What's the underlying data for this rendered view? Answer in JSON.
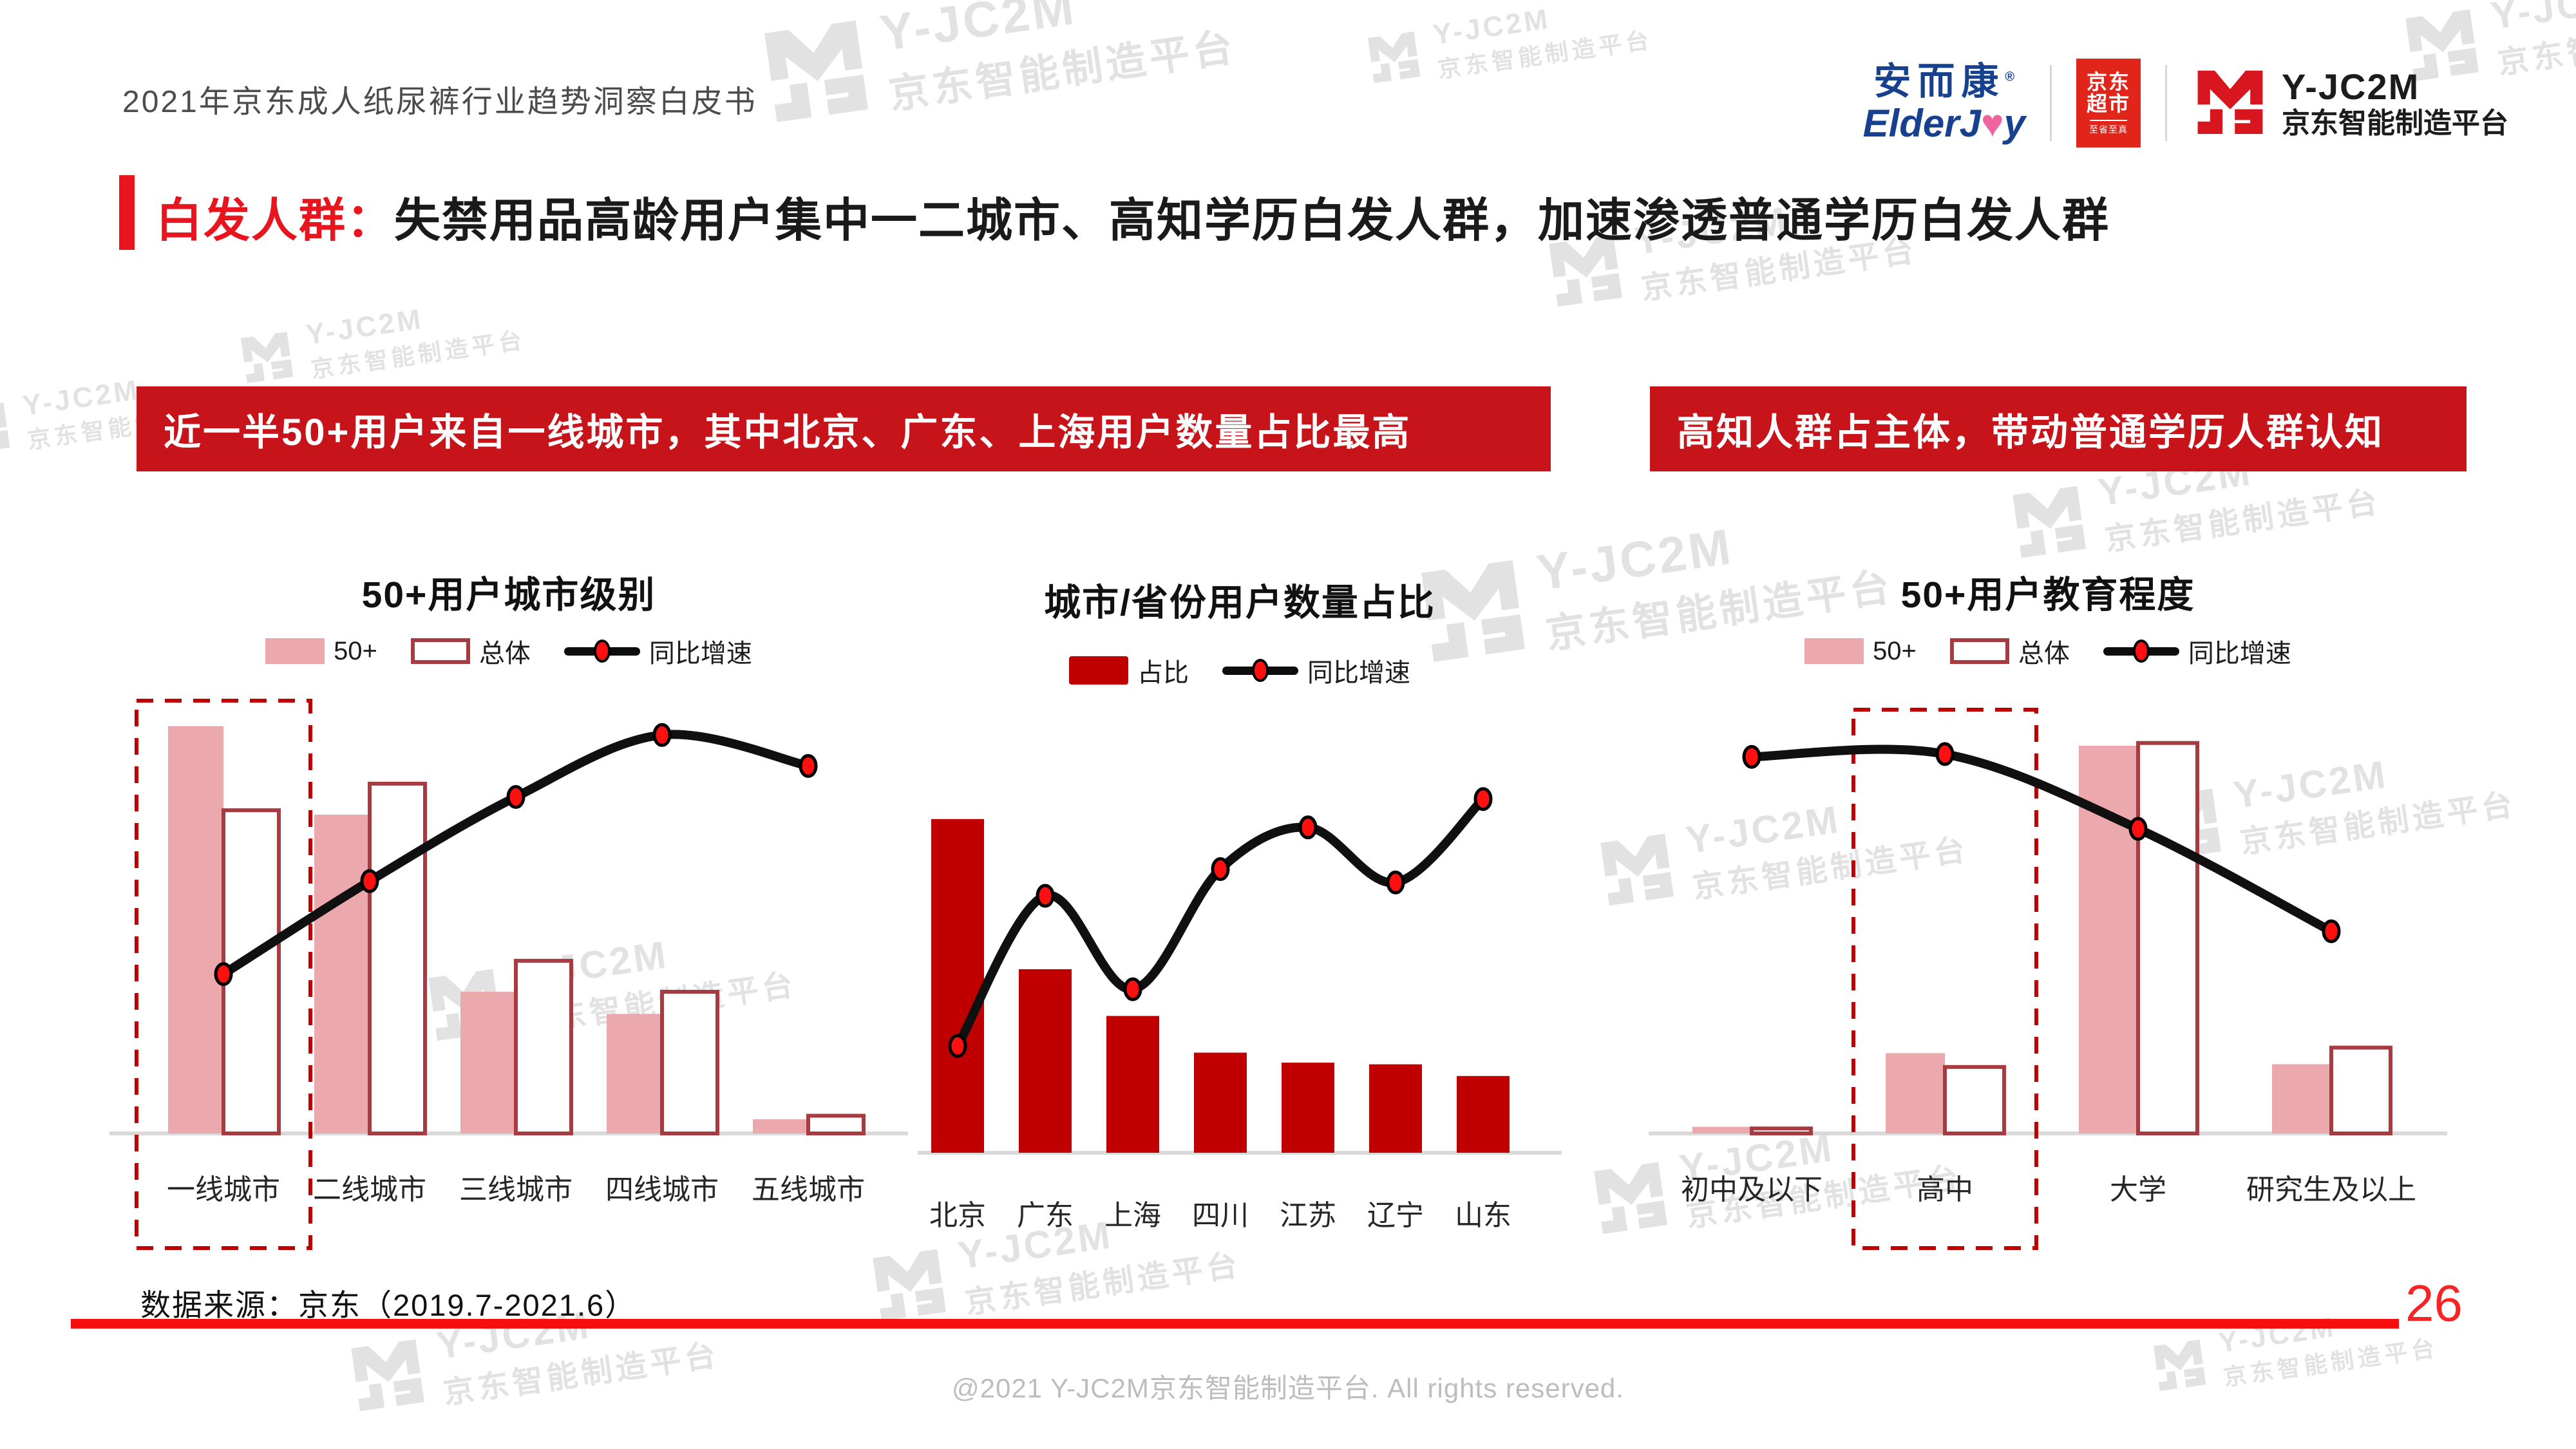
{
  "header": {
    "doc_title": "2021年京东成人纸尿裤行业趋势洞察白皮书",
    "logos": {
      "elderjoy": {
        "cn": "安而康",
        "reg": "®",
        "en_pre": "ElderJ",
        "en_heart": "♥",
        "en_post": "y"
      },
      "jd_supermarket": {
        "line1": "京东",
        "line2": "超市",
        "slogan": "至省至真"
      },
      "yjc2m": {
        "name": "Y-JC2M",
        "subtitle": "京东智能制造平台"
      }
    }
  },
  "title": {
    "highlight": "白发人群：",
    "rest": "失禁用品高龄用户集中一二城市、高知学历白发人群，加速渗透普通学历白发人群"
  },
  "banners": {
    "left": "近一半50+用户来自一线城市，其中北京、广东、上海用户数量占比最高",
    "right": "高知人群占主体，带动普通学历人群认知"
  },
  "watermark": {
    "line1": "Y-JC2M",
    "line2": "京东智能制造平台"
  },
  "palette": {
    "pink": "#EBA8AD",
    "outline": "#A63C42",
    "solid": "#C00000",
    "marker": "#FF1010",
    "line": "#101010",
    "banner": "#C7141B",
    "accent": "#E8141E",
    "jd_red": "#E1251B",
    "watermark": "#E2E2E2"
  },
  "chart_data": [
    {
      "id": "city-tier",
      "type": "bar+line",
      "title": "50+用户城市级别",
      "legend": [
        "50+",
        "总体",
        "同比增速"
      ],
      "categories": [
        "一线城市",
        "二线城市",
        "三线城市",
        "四线城市",
        "五线城市"
      ],
      "ymax": 48,
      "grid": false,
      "highlight_index": 0,
      "series": [
        {
          "name": "50+",
          "type": "bar",
          "style": "pink",
          "values": [
            46,
            36,
            16,
            13.5,
            1.6
          ]
        },
        {
          "name": "总体",
          "type": "bar",
          "style": "outline",
          "values": [
            36.5,
            39.5,
            19.5,
            16,
            2
          ]
        },
        {
          "name": "同比增速",
          "type": "line",
          "values": [
            18,
            28.5,
            38,
            45,
            41.5
          ]
        }
      ],
      "note": "values are percentages estimated from bar heights; growth line on hidden secondary axis"
    },
    {
      "id": "province",
      "type": "bar+line",
      "title": "城市/省份用户数量占比",
      "legend": [
        "占比",
        "同比增速"
      ],
      "categories": [
        "北京",
        "广东",
        "上海",
        "四川",
        "江苏",
        "辽宁",
        "山东"
      ],
      "ymax": 22,
      "grid": false,
      "highlight_index": null,
      "series": [
        {
          "name": "占比",
          "type": "bar",
          "style": "solid",
          "values": [
            20,
            11,
            8.2,
            6,
            5.4,
            5.3,
            4.6
          ]
        },
        {
          "name": "同比增速",
          "type": "line",
          "values": [
            6.4,
            15.4,
            9.8,
            17,
            19.5,
            16.2,
            21.2
          ]
        }
      ],
      "note": "values are percentages estimated from bar heights; growth line on hidden secondary axis"
    },
    {
      "id": "education",
      "type": "bar+line",
      "title": "50+用户教育程度",
      "legend": [
        "50+",
        "总体",
        "同比增速"
      ],
      "categories": [
        "初中及以下",
        "高中",
        "大学",
        "研究生及以上"
      ],
      "ymax": 75,
      "grid": false,
      "highlight_index": 1,
      "series": [
        {
          "name": "50+",
          "type": "bar",
          "style": "pink",
          "values": [
            1.2,
            14.5,
            70,
            12.5
          ]
        },
        {
          "name": "总体",
          "type": "bar",
          "style": "outline",
          "values": [
            0.9,
            12,
            70.5,
            15.5
          ]
        },
        {
          "name": "同比增速",
          "type": "line",
          "values": [
            68,
            68.5,
            55,
            36.5
          ]
        }
      ],
      "note": "values are percentages estimated from bar heights; growth line on hidden secondary axis"
    }
  ],
  "footer": {
    "source": "数据来源：京东（2019.7-2021.6）",
    "page": "26",
    "copyright": "@2021 Y-JC2M京东智能制造平台. All rights reserved."
  }
}
